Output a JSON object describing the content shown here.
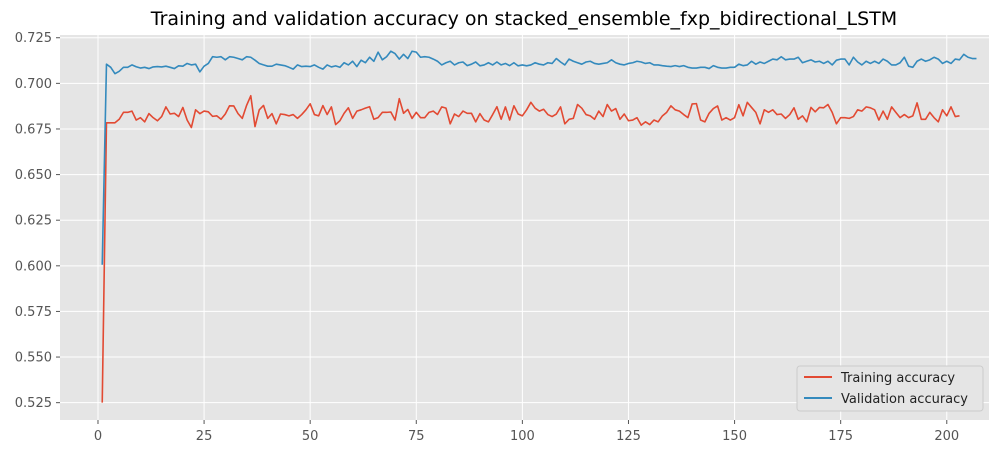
{
  "chart_data": {
    "type": "line",
    "title": "Training and validation accuracy on stacked_ensemble_fxp_bidirectional_LSTM",
    "xlabel": "",
    "ylabel": "",
    "xlim": [
      -8.95,
      209.95
    ],
    "ylim": [
      0.5155,
      0.7265
    ],
    "xticks": [
      0,
      25,
      50,
      75,
      100,
      125,
      150,
      175,
      200
    ],
    "yticks": [
      0.525,
      0.55,
      0.575,
      0.6,
      0.625,
      0.65,
      0.675,
      0.7,
      0.725
    ],
    "ytick_labels": [
      "0.525",
      "0.550",
      "0.575",
      "0.600",
      "0.625",
      "0.650",
      "0.675",
      "0.700",
      "0.725"
    ],
    "grid": true,
    "legend": "lower-right",
    "x_start": 1,
    "series": [
      {
        "name": "Training accuracy",
        "color": "#E24A33",
        "values": [
          0.525,
          0.6784,
          0.6784,
          0.6784,
          0.6803,
          0.6841,
          0.6841,
          0.6848,
          0.6799,
          0.6812,
          0.6789,
          0.6834,
          0.6812,
          0.6795,
          0.6818,
          0.6871,
          0.6832,
          0.6836,
          0.6818,
          0.6868,
          0.6799,
          0.6758,
          0.6855,
          0.6834,
          0.6848,
          0.6844,
          0.6819,
          0.6822,
          0.6803,
          0.6832,
          0.6877,
          0.6876,
          0.6834,
          0.6808,
          0.6878,
          0.6932,
          0.6763,
          0.6855,
          0.6879,
          0.6808,
          0.6834,
          0.6778,
          0.6832,
          0.6829,
          0.6822,
          0.6829,
          0.6808,
          0.6829,
          0.6855,
          0.6888,
          0.6829,
          0.6822,
          0.6878,
          0.6829,
          0.6871,
          0.6774,
          0.6795,
          0.6836,
          0.6866,
          0.6808,
          0.6848,
          0.6855,
          0.6864,
          0.6872,
          0.6803,
          0.6812,
          0.6841,
          0.6841,
          0.6843,
          0.6799,
          0.6916,
          0.6836,
          0.6857,
          0.6808,
          0.6841,
          0.6812,
          0.6812,
          0.6841,
          0.6848,
          0.6829,
          0.6871,
          0.6864,
          0.6778,
          0.6832,
          0.6818,
          0.6848,
          0.6836,
          0.6836,
          0.6789,
          0.6834,
          0.6799,
          0.6789,
          0.6829,
          0.6872,
          0.6803,
          0.6871,
          0.6799,
          0.6877,
          0.6832,
          0.6822,
          0.6855,
          0.6896,
          0.6864,
          0.6848,
          0.6858,
          0.6829,
          0.6818,
          0.6832,
          0.6871,
          0.6778,
          0.6803,
          0.6808,
          0.6884,
          0.6864,
          0.6829,
          0.6822,
          0.6803,
          0.6848,
          0.6818,
          0.6884,
          0.6848,
          0.6862,
          0.6803,
          0.6832,
          0.6795,
          0.6799,
          0.6812,
          0.6771,
          0.6789,
          0.6774,
          0.6799,
          0.6789,
          0.6822,
          0.6841,
          0.6877,
          0.6855,
          0.6848,
          0.6829,
          0.6812,
          0.6887,
          0.6889,
          0.6799,
          0.6789,
          0.6836,
          0.6862,
          0.6876,
          0.6799,
          0.6812,
          0.6799,
          0.6812,
          0.6883,
          0.6822,
          0.6896,
          0.6868,
          0.6841,
          0.6778,
          0.6855,
          0.6841,
          0.6855,
          0.6829,
          0.6832,
          0.6808,
          0.6829,
          0.6866,
          0.6803,
          0.6822,
          0.6789,
          0.6868,
          0.6844,
          0.6868,
          0.6866,
          0.6884,
          0.6841,
          0.6778,
          0.6812,
          0.6812,
          0.6808,
          0.6818,
          0.6855,
          0.6848,
          0.6871,
          0.6866,
          0.6855,
          0.6799,
          0.6848,
          0.6803,
          0.6871,
          0.6841,
          0.6812,
          0.6829,
          0.6812,
          0.6822,
          0.6893,
          0.6803,
          0.6803,
          0.6841,
          0.6812,
          0.6789,
          0.6855,
          0.6822,
          0.6871,
          0.6818,
          0.6822
        ]
      },
      {
        "name": "Validation accuracy",
        "color": "#348ABD",
        "values": [
          0.6006,
          0.7105,
          0.7088,
          0.7053,
          0.7066,
          0.7088,
          0.7088,
          0.7101,
          0.7091,
          0.7084,
          0.7088,
          0.7081,
          0.709,
          0.7092,
          0.709,
          0.7094,
          0.7088,
          0.7081,
          0.7096,
          0.7094,
          0.7109,
          0.7101,
          0.7105,
          0.7063,
          0.7094,
          0.7109,
          0.7146,
          0.7143,
          0.7146,
          0.7129,
          0.7146,
          0.7143,
          0.7136,
          0.7129,
          0.7146,
          0.7143,
          0.7127,
          0.7109,
          0.7101,
          0.7094,
          0.7094,
          0.7105,
          0.7101,
          0.7097,
          0.7088,
          0.7078,
          0.7101,
          0.7092,
          0.7094,
          0.7092,
          0.7101,
          0.7088,
          0.7078,
          0.7101,
          0.709,
          0.7096,
          0.7088,
          0.7113,
          0.7101,
          0.7121,
          0.7092,
          0.7127,
          0.7113,
          0.7143,
          0.7121,
          0.7171,
          0.7129,
          0.7146,
          0.7176,
          0.7163,
          0.7133,
          0.7159,
          0.7136,
          0.7176,
          0.7171,
          0.7143,
          0.7146,
          0.7143,
          0.7133,
          0.7121,
          0.7101,
          0.7113,
          0.7121,
          0.7101,
          0.7113,
          0.7117,
          0.7097,
          0.7105,
          0.7117,
          0.7096,
          0.7101,
          0.7113,
          0.7101,
          0.7117,
          0.7101,
          0.7109,
          0.7097,
          0.7113,
          0.7096,
          0.7101,
          0.7096,
          0.7101,
          0.7113,
          0.7105,
          0.7101,
          0.7113,
          0.7109,
          0.7136,
          0.7117,
          0.7101,
          0.7133,
          0.7121,
          0.7113,
          0.7105,
          0.7117,
          0.7121,
          0.7109,
          0.7105,
          0.7109,
          0.7113,
          0.7129,
          0.7113,
          0.7105,
          0.7101,
          0.7109,
          0.7113,
          0.7121,
          0.7117,
          0.7109,
          0.7113,
          0.7101,
          0.7101,
          0.7097,
          0.7094,
          0.7092,
          0.7097,
          0.7092,
          0.7097,
          0.7088,
          0.7084,
          0.7084,
          0.7088,
          0.7088,
          0.7081,
          0.7097,
          0.7088,
          0.7084,
          0.7084,
          0.7088,
          0.7088,
          0.7105,
          0.7097,
          0.7101,
          0.7121,
          0.7105,
          0.7117,
          0.7109,
          0.7121,
          0.7133,
          0.7129,
          0.7146,
          0.7129,
          0.7133,
          0.7133,
          0.7143,
          0.7113,
          0.7121,
          0.7129,
          0.7117,
          0.7121,
          0.7109,
          0.7121,
          0.7101,
          0.7127,
          0.7133,
          0.7133,
          0.7101,
          0.7143,
          0.7117,
          0.7101,
          0.7121,
          0.7109,
          0.7121,
          0.7109,
          0.7133,
          0.7121,
          0.7101,
          0.7101,
          0.7113,
          0.7143,
          0.7094,
          0.7088,
          0.7121,
          0.7133,
          0.7121,
          0.7129,
          0.7143,
          0.7133,
          0.7109,
          0.7121,
          0.7109,
          0.7133,
          0.7129,
          0.7159,
          0.7143,
          0.7136,
          0.7136
        ]
      }
    ]
  }
}
